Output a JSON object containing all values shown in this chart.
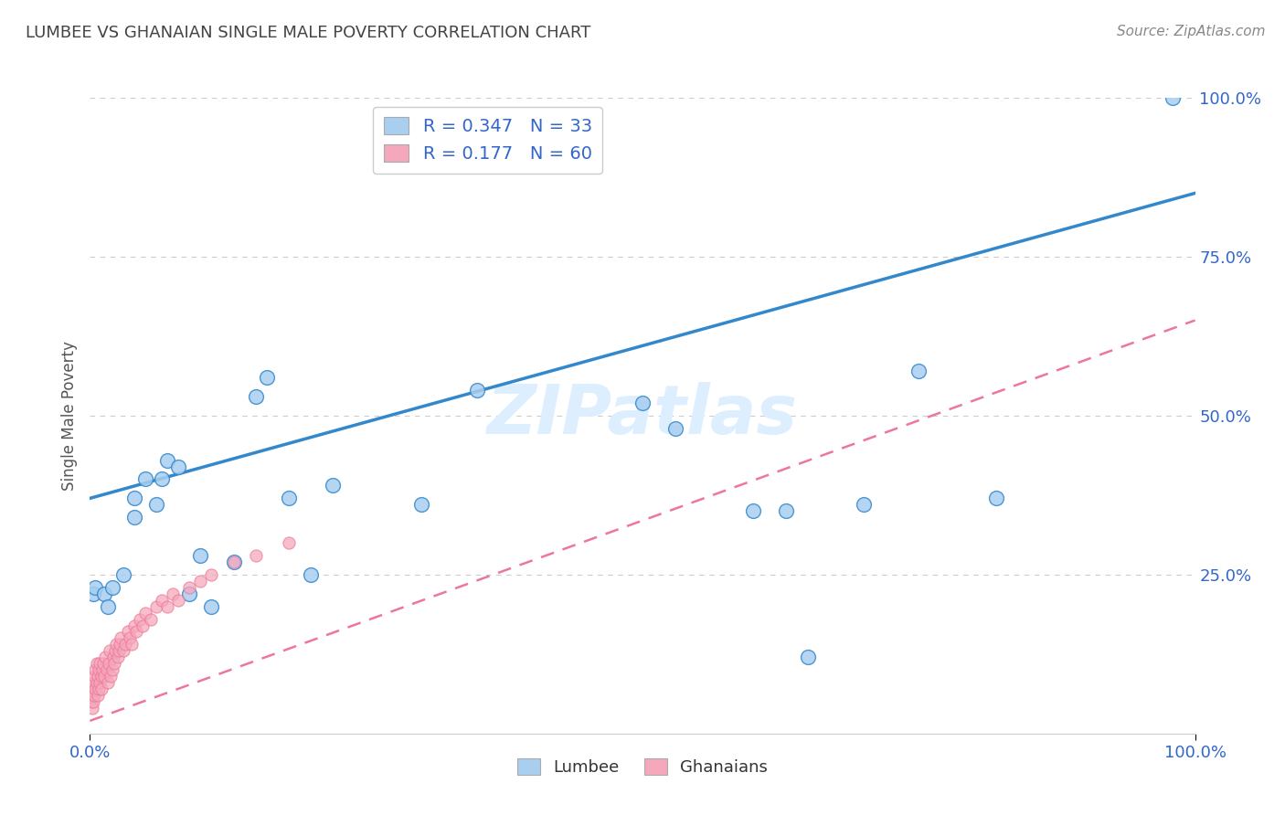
{
  "title": "LUMBEE VS GHANAIAN SINGLE MALE POVERTY CORRELATION CHART",
  "source_text": "Source: ZipAtlas.com",
  "ylabel": "Single Male Poverty",
  "xlim": [
    0,
    1
  ],
  "ylim": [
    0,
    1
  ],
  "lumbee_R": 0.347,
  "lumbee_N": 33,
  "ghanaian_R": 0.177,
  "ghanaian_N": 60,
  "lumbee_color": "#a8cef0",
  "ghanaian_color": "#f5a8bc",
  "lumbee_line_color": "#3388cc",
  "ghanaian_line_color": "#ee7799",
  "watermark": "ZIPatlas",
  "watermark_color": "#ddeeff",
  "legend_color": "#3366cc",
  "background_color": "#ffffff",
  "grid_color": "#cccccc",
  "axis_label_color": "#3366cc",
  "title_color": "#444444",
  "lumbee_line_x0": 0.0,
  "lumbee_line_y0": 0.37,
  "lumbee_line_x1": 1.0,
  "lumbee_line_y1": 0.85,
  "ghanaian_line_x0": 0.0,
  "ghanaian_line_y0": 0.02,
  "ghanaian_line_x1": 1.0,
  "ghanaian_line_y1": 0.65,
  "lumbee_x": [
    0.003,
    0.005,
    0.013,
    0.016,
    0.02,
    0.03,
    0.04,
    0.04,
    0.05,
    0.06,
    0.065,
    0.07,
    0.08,
    0.09,
    0.1,
    0.11,
    0.13,
    0.15,
    0.16,
    0.18,
    0.2,
    0.22,
    0.3,
    0.35,
    0.5,
    0.53,
    0.6,
    0.63,
    0.65,
    0.7,
    0.75,
    0.82,
    0.98
  ],
  "lumbee_y": [
    0.22,
    0.23,
    0.22,
    0.2,
    0.23,
    0.25,
    0.34,
    0.37,
    0.4,
    0.36,
    0.4,
    0.43,
    0.42,
    0.22,
    0.28,
    0.2,
    0.27,
    0.53,
    0.56,
    0.37,
    0.25,
    0.39,
    0.36,
    0.54,
    0.52,
    0.48,
    0.35,
    0.35,
    0.12,
    0.36,
    0.57,
    0.37,
    1.0
  ],
  "ghanaian_x": [
    0.001,
    0.001,
    0.002,
    0.002,
    0.003,
    0.003,
    0.004,
    0.004,
    0.005,
    0.005,
    0.006,
    0.006,
    0.007,
    0.007,
    0.008,
    0.008,
    0.009,
    0.009,
    0.01,
    0.01,
    0.011,
    0.012,
    0.013,
    0.014,
    0.015,
    0.016,
    0.017,
    0.018,
    0.019,
    0.02,
    0.021,
    0.022,
    0.023,
    0.024,
    0.025,
    0.026,
    0.027,
    0.028,
    0.03,
    0.032,
    0.034,
    0.036,
    0.038,
    0.04,
    0.042,
    0.045,
    0.048,
    0.05,
    0.055,
    0.06,
    0.065,
    0.07,
    0.075,
    0.08,
    0.09,
    0.1,
    0.11,
    0.13,
    0.15,
    0.18
  ],
  "ghanaian_y": [
    0.05,
    0.07,
    0.04,
    0.06,
    0.05,
    0.08,
    0.06,
    0.09,
    0.07,
    0.1,
    0.08,
    0.11,
    0.06,
    0.09,
    0.07,
    0.1,
    0.08,
    0.11,
    0.07,
    0.09,
    0.1,
    0.11,
    0.09,
    0.12,
    0.1,
    0.08,
    0.11,
    0.13,
    0.09,
    0.1,
    0.12,
    0.11,
    0.13,
    0.14,
    0.12,
    0.13,
    0.14,
    0.15,
    0.13,
    0.14,
    0.16,
    0.15,
    0.14,
    0.17,
    0.16,
    0.18,
    0.17,
    0.19,
    0.18,
    0.2,
    0.21,
    0.2,
    0.22,
    0.21,
    0.23,
    0.24,
    0.25,
    0.27,
    0.28,
    0.3
  ]
}
